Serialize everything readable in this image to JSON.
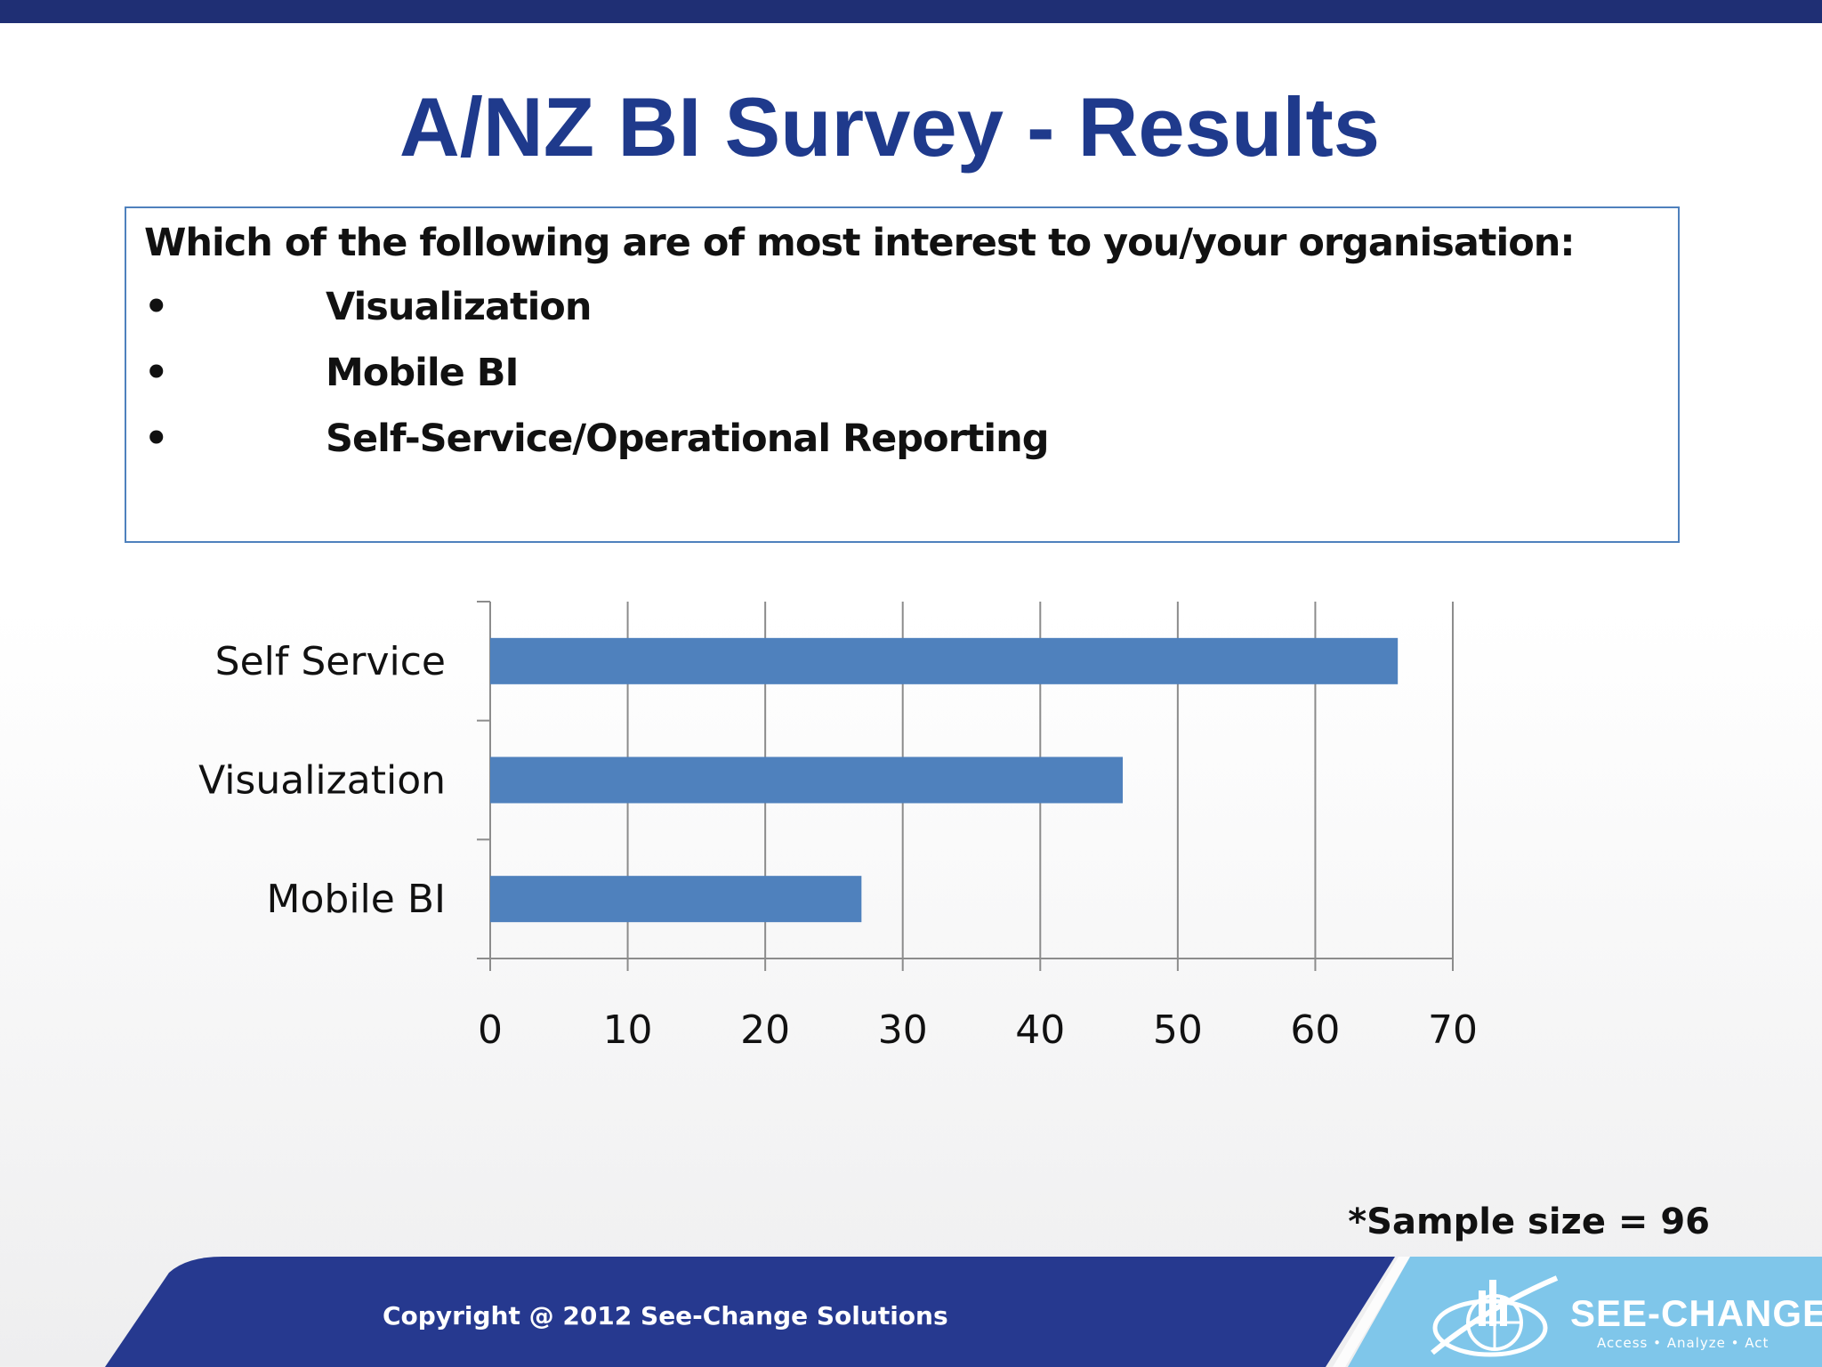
{
  "slide": {
    "title": "A/NZ BI Survey - Results",
    "question": "Which of the following are of most interest to you/your organisation:",
    "options": [
      "Visualization",
      "Mobile BI",
      "Self-Service/Operational Reporting"
    ],
    "bullet": "•",
    "sample_note": "*Sample size = 96",
    "copyright": "Copyright @ 2012 See-Change Solutions"
  },
  "logo": {
    "name": "SEE-CHANGE",
    "tagline": "Access • Analyze • Act",
    "icon": "see-change-globe-logo-icon"
  },
  "colors": {
    "bar": "#4f81bd",
    "title": "#1f3a8c",
    "top_bar": "#1f2f74",
    "footer_band": "#26398f",
    "logo_panel": "#7fc6ea"
  },
  "chart_data": {
    "type": "bar",
    "orientation": "horizontal",
    "categories": [
      "Self Service",
      "Visualization",
      "Mobile BI"
    ],
    "values": [
      66,
      46,
      27
    ],
    "xlim": [
      0,
      70
    ],
    "xticks": [
      0,
      10,
      20,
      30,
      40,
      50,
      60,
      70
    ],
    "grid": true,
    "title": "",
    "xlabel": "",
    "ylabel": ""
  }
}
